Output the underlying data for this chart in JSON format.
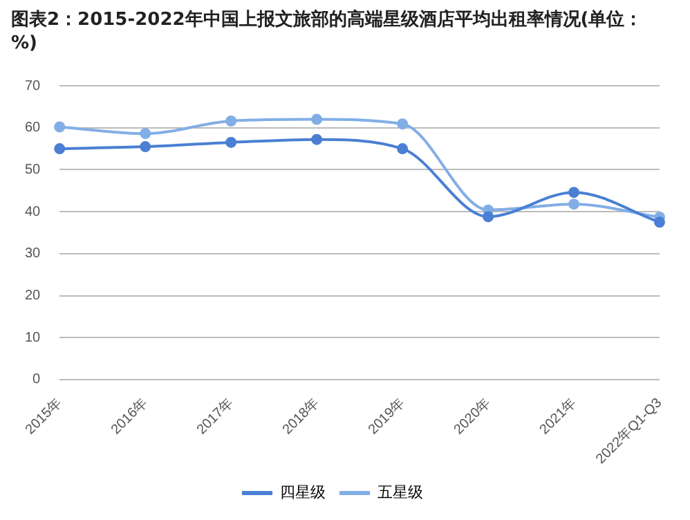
{
  "chart_data": {
    "type": "line",
    "title": "图表2：2015-2022年中国上报文旅部的高端星级酒店平均出租率情况(单位：%)",
    "categories": [
      "2015年",
      "2016年",
      "2017年",
      "2018年",
      "2019年",
      "2020年",
      "2021年",
      "2022年Q1-Q3"
    ],
    "series": [
      {
        "name": "四星级",
        "color": "#4a7fd4",
        "values": [
          55,
          55.5,
          56.5,
          57.2,
          55,
          38.8,
          44.6,
          37.5
        ]
      },
      {
        "name": "五星级",
        "color": "#82aee6",
        "values": [
          60.2,
          58.6,
          61.6,
          62,
          60.9,
          40.4,
          41.8,
          38.7
        ]
      }
    ],
    "ylim": [
      0,
      70
    ],
    "yticks": [
      0,
      10,
      20,
      30,
      40,
      50,
      60,
      70
    ],
    "grid": "y",
    "legend": "bottom",
    "marker": "circle",
    "line_style": "solid"
  }
}
